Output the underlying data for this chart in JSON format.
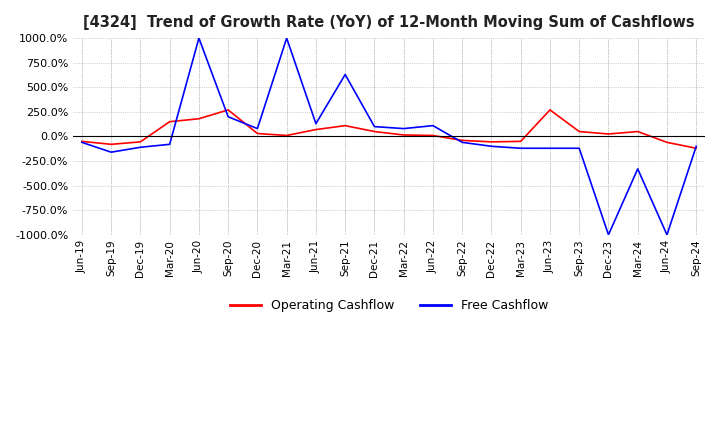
{
  "title": "[4324]  Trend of Growth Rate (YoY) of 12-Month Moving Sum of Cashflows",
  "ylim": [
    -1000,
    1000
  ],
  "yticks": [
    -1000,
    -750,
    -500,
    -250,
    0,
    250,
    500,
    750,
    1000
  ],
  "legend": [
    "Operating Cashflow",
    "Free Cashflow"
  ],
  "legend_colors": [
    "#ff0000",
    "#0000ff"
  ],
  "x_labels": [
    "Jun-19",
    "Sep-19",
    "Dec-19",
    "Mar-20",
    "Jun-20",
    "Sep-20",
    "Dec-20",
    "Mar-21",
    "Jun-21",
    "Sep-21",
    "Dec-21",
    "Mar-22",
    "Jun-22",
    "Sep-22",
    "Dec-22",
    "Mar-23",
    "Jun-23",
    "Sep-23",
    "Dec-23",
    "Mar-24",
    "Jun-24",
    "Sep-24"
  ],
  "operating_cashflow": [
    -50,
    -80,
    -55,
    150,
    180,
    270,
    30,
    10,
    70,
    110,
    50,
    15,
    10,
    -40,
    -55,
    -50,
    270,
    50,
    25,
    50,
    -60,
    -120
  ],
  "free_cashflow": [
    -60,
    -160,
    -110,
    -80,
    1000,
    200,
    80,
    1000,
    130,
    630,
    100,
    80,
    110,
    -60,
    -100,
    -120,
    -120,
    -120,
    -1000,
    -330,
    -1000,
    -100
  ],
  "background_color": "#ffffff",
  "grid_color": "#aaaaaa",
  "plot_bg_color": "#ffffff"
}
